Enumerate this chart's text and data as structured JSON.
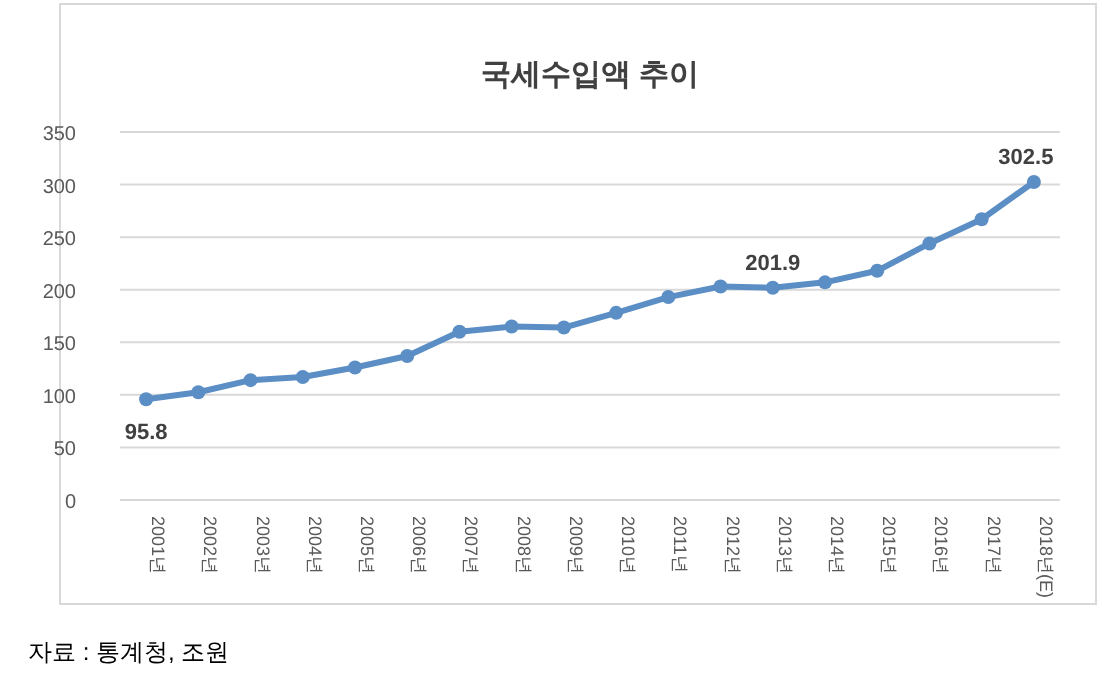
{
  "chart_data": {
    "type": "line",
    "title": "국세수입액 추이",
    "categories": [
      "2001년",
      "2002년",
      "2003년",
      "2004년",
      "2005년",
      "2006년",
      "2007년",
      "2008년",
      "2009년",
      "2010년",
      "2011년",
      "2012년",
      "2013년",
      "2014년",
      "2015년",
      "2016년",
      "2017년",
      "2018년(E)"
    ],
    "series": [
      {
        "color": "#5b8ec4",
        "values": [
          95.8,
          102.5,
          114,
          117,
          126,
          137,
          160,
          165,
          164,
          178,
          193,
          203,
          201.9,
          207,
          218,
          244,
          267,
          302.5
        ],
        "value_labels": [
          "95.8",
          null,
          null,
          null,
          null,
          null,
          null,
          null,
          null,
          null,
          null,
          null,
          "201.9",
          null,
          null,
          null,
          null,
          "302.5"
        ]
      }
    ],
    "ylim": [
      0,
      350
    ],
    "yticks": [
      0,
      50,
      100,
      150,
      200,
      250,
      300,
      350
    ],
    "grid": "y",
    "marker": "circle",
    "line_style": "solid",
    "annotations": [
      "자료 : 통계청, 조원"
    ]
  }
}
